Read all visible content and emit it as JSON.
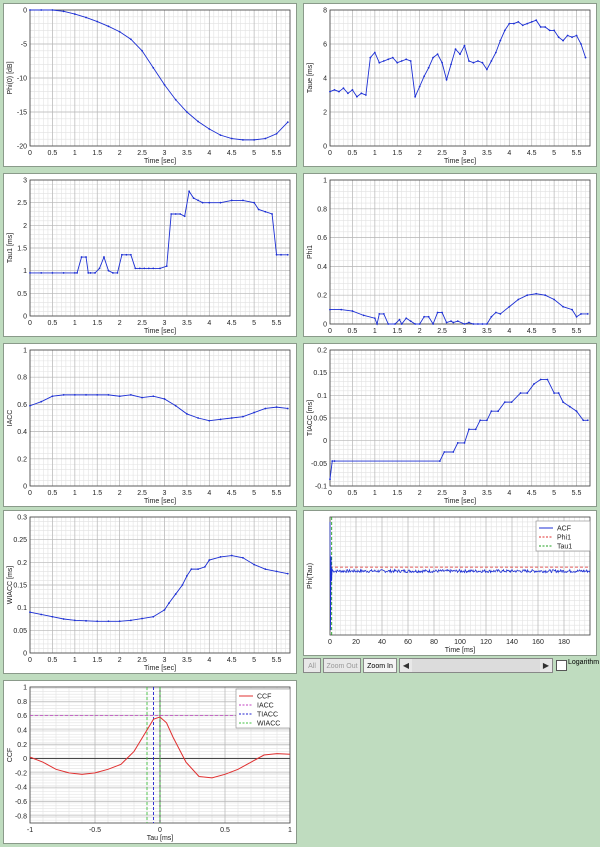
{
  "charts": [
    {
      "id": "phi0",
      "type": "line",
      "xlabel": "Time [sec]",
      "ylabel": "Phi(0) [dB]",
      "xlim": [
        0,
        5.8
      ],
      "ylim": [
        -20,
        0
      ],
      "xticks": [
        0,
        0.5,
        1,
        1.5,
        2,
        2.5,
        3,
        3.5,
        4,
        4.5,
        5,
        5.5
      ],
      "yticks": [
        0,
        -5,
        -10,
        -15,
        -20
      ],
      "grid": true,
      "color": "#1c2fd4",
      "x": [
        0,
        0.25,
        0.5,
        0.75,
        1,
        1.25,
        1.5,
        1.75,
        2,
        2.25,
        2.5,
        2.75,
        3,
        3.25,
        3.5,
        3.75,
        4,
        4.25,
        4.5,
        4.75,
        5,
        5.25,
        5.5,
        5.75
      ],
      "y": [
        0,
        0,
        0,
        -0.2,
        -0.6,
        -1.1,
        -1.7,
        -2.4,
        -3.2,
        -4.3,
        -6,
        -8.5,
        -11,
        -13.2,
        -15,
        -16.4,
        -17.5,
        -18.4,
        -18.9,
        -19.1,
        -19.1,
        -18.9,
        -18.2,
        -16.5
      ]
    },
    {
      "id": "taue",
      "type": "line",
      "xlabel": "Time [sec]",
      "ylabel": "Taue [ms]",
      "xlim": [
        0,
        5.8
      ],
      "ylim": [
        0,
        8
      ],
      "xticks": [
        0,
        0.5,
        1,
        1.5,
        2,
        2.5,
        3,
        3.5,
        4,
        4.5,
        5,
        5.5
      ],
      "yticks": [
        0,
        2,
        4,
        6,
        8
      ],
      "grid": true,
      "color": "#1c2fd4",
      "x": [
        0,
        0.1,
        0.2,
        0.3,
        0.4,
        0.5,
        0.6,
        0.7,
        0.8,
        0.9,
        1,
        1.1,
        1.2,
        1.3,
        1.4,
        1.5,
        1.6,
        1.7,
        1.8,
        1.9,
        2,
        2.1,
        2.2,
        2.3,
        2.4,
        2.5,
        2.6,
        2.7,
        2.8,
        2.9,
        3,
        3.1,
        3.2,
        3.3,
        3.4,
        3.5,
        3.6,
        3.7,
        3.8,
        3.9,
        4,
        4.1,
        4.2,
        4.3,
        4.4,
        4.5,
        4.6,
        4.7,
        4.8,
        4.9,
        5,
        5.1,
        5.2,
        5.3,
        5.4,
        5.5,
        5.6,
        5.7
      ],
      "y": [
        3.2,
        3.3,
        3.2,
        3.4,
        3.1,
        3.3,
        2.9,
        3.1,
        3.0,
        5.2,
        5.5,
        4.9,
        5.0,
        5.1,
        5.2,
        4.9,
        5.0,
        5.1,
        5.0,
        2.9,
        3.5,
        4.1,
        4.6,
        5.2,
        5.4,
        4.9,
        3.9,
        4.8,
        5.7,
        5.4,
        5.9,
        5.0,
        4.9,
        5.0,
        4.9,
        4.5,
        5.0,
        5.5,
        6.2,
        6.8,
        7.2,
        7.2,
        7.3,
        7.1,
        7.2,
        7.3,
        7.4,
        7.0,
        7.0,
        6.8,
        6.8,
        6.4,
        6.2,
        6.5,
        6.4,
        6.5,
        6.0,
        5.2
      ]
    },
    {
      "id": "tau1",
      "type": "line",
      "xlabel": "Time [sec]",
      "ylabel": "Tau1 [ms]",
      "xlim": [
        0,
        5.8
      ],
      "ylim": [
        0,
        3
      ],
      "xticks": [
        0,
        0.5,
        1,
        1.5,
        2,
        2.5,
        3,
        3.5,
        4,
        4.5,
        5,
        5.5
      ],
      "yticks": [
        0,
        0.5,
        1,
        1.5,
        2,
        2.5,
        3
      ],
      "grid": true,
      "color": "#1c2fd4",
      "x": [
        0,
        0.25,
        0.5,
        0.75,
        1,
        1.05,
        1.15,
        1.25,
        1.3,
        1.35,
        1.45,
        1.55,
        1.65,
        1.75,
        1.85,
        1.95,
        2.05,
        2.15,
        2.25,
        2.35,
        2.45,
        2.55,
        2.65,
        2.75,
        2.9,
        3.05,
        3.15,
        3.25,
        3.35,
        3.45,
        3.55,
        3.65,
        3.75,
        3.85,
        4,
        4.25,
        4.5,
        4.75,
        5,
        5.1,
        5.25,
        5.4,
        5.5,
        5.6,
        5.75
      ],
      "y": [
        0.95,
        0.95,
        0.95,
        0.95,
        0.95,
        0.95,
        1.3,
        1.3,
        0.95,
        0.95,
        0.95,
        1.05,
        1.3,
        1.0,
        0.95,
        0.95,
        1.35,
        1.35,
        1.35,
        1.05,
        1.05,
        1.05,
        1.05,
        1.05,
        1.05,
        1.1,
        2.25,
        2.25,
        2.25,
        2.2,
        2.75,
        2.6,
        2.55,
        2.5,
        2.5,
        2.5,
        2.55,
        2.55,
        2.5,
        2.35,
        2.3,
        2.25,
        1.35,
        1.35,
        1.35
      ]
    },
    {
      "id": "phi1",
      "type": "line",
      "xlabel": "",
      "ylabel": "Phi1",
      "xlim": [
        0,
        5.8
      ],
      "ylim": [
        0,
        1
      ],
      "xticks": [
        0,
        0.5,
        1,
        1.5,
        2,
        2.5,
        3,
        3.5,
        4,
        4.5,
        5,
        5.5
      ],
      "yticks": [
        0,
        0.2,
        0.4,
        0.6,
        0.8,
        1
      ],
      "grid": true,
      "color": "#1c2fd4",
      "x": [
        0,
        0.25,
        0.5,
        0.75,
        1,
        1.05,
        1.1,
        1.2,
        1.3,
        1.45,
        1.55,
        1.6,
        1.7,
        1.8,
        1.9,
        2,
        2.1,
        2.2,
        2.3,
        2.4,
        2.5,
        2.6,
        2.7,
        2.75,
        2.85,
        3,
        3.1,
        3.2,
        3.3,
        3.4,
        3.5,
        3.6,
        3.7,
        3.8,
        4,
        4.2,
        4.4,
        4.6,
        4.8,
        5,
        5.2,
        5.4,
        5.5,
        5.6,
        5.75
      ],
      "y": [
        0.1,
        0.1,
        0.09,
        0.06,
        0.04,
        0.0,
        0.07,
        0.07,
        0.0,
        0.0,
        0.03,
        0.0,
        0.04,
        0.02,
        0.0,
        0.0,
        0.05,
        0.05,
        0.0,
        0.08,
        0.08,
        0.01,
        0.02,
        0.01,
        0.02,
        0.0,
        0.01,
        0.0,
        0.0,
        0.0,
        0.0,
        0.05,
        0.08,
        0.07,
        0.12,
        0.17,
        0.2,
        0.21,
        0.2,
        0.17,
        0.12,
        0.1,
        0.05,
        0.07,
        0.07
      ]
    },
    {
      "id": "iacc",
      "type": "line",
      "xlabel": "Time [sec]",
      "ylabel": "IACC",
      "xlim": [
        0,
        5.8
      ],
      "ylim": [
        0,
        1
      ],
      "xticks": [
        0,
        0.5,
        1,
        1.5,
        2,
        2.5,
        3,
        3.5,
        4,
        4.5,
        5,
        5.5
      ],
      "yticks": [
        0,
        0.2,
        0.4,
        0.6,
        0.8,
        1
      ],
      "grid": true,
      "color": "#1c2fd4",
      "x": [
        0,
        0.25,
        0.5,
        0.75,
        1,
        1.25,
        1.5,
        1.75,
        2,
        2.25,
        2.5,
        2.75,
        3,
        3.25,
        3.5,
        3.75,
        4,
        4.25,
        4.5,
        4.75,
        5,
        5.25,
        5.5,
        5.75
      ],
      "y": [
        0.59,
        0.62,
        0.66,
        0.67,
        0.67,
        0.67,
        0.67,
        0.67,
        0.66,
        0.67,
        0.65,
        0.66,
        0.64,
        0.59,
        0.53,
        0.5,
        0.48,
        0.49,
        0.5,
        0.51,
        0.54,
        0.57,
        0.58,
        0.57
      ]
    },
    {
      "id": "tiacc",
      "type": "line",
      "xlabel": "Time [sec]",
      "ylabel": "TIACC [ms]",
      "xlim": [
        0,
        5.8
      ],
      "ylim": [
        -0.1,
        0.2
      ],
      "xticks": [
        0,
        0.5,
        1,
        1.5,
        2,
        2.5,
        3,
        3.5,
        4,
        4.5,
        5,
        5.5
      ],
      "yticks": [
        -0.1,
        -0.05,
        0,
        0.05,
        0.1,
        0.15,
        0.2
      ],
      "grid": true,
      "color": "#1c2fd4",
      "x": [
        0,
        0.05,
        0.1,
        2.45,
        2.55,
        2.75,
        2.85,
        3.0,
        3.1,
        3.25,
        3.35,
        3.5,
        3.6,
        3.75,
        3.9,
        4.05,
        4.25,
        4.4,
        4.55,
        4.7,
        4.85,
        5.0,
        5.1,
        5.2,
        5.35,
        5.5,
        5.65,
        5.75
      ],
      "y": [
        -0.085,
        -0.045,
        -0.045,
        -0.045,
        -0.025,
        -0.025,
        -0.005,
        -0.005,
        0.025,
        0.025,
        0.045,
        0.045,
        0.065,
        0.065,
        0.085,
        0.085,
        0.105,
        0.105,
        0.125,
        0.135,
        0.135,
        0.105,
        0.105,
        0.085,
        0.075,
        0.065,
        0.045,
        0.045
      ]
    },
    {
      "id": "wiacc",
      "type": "line",
      "xlabel": "Time [sec]",
      "ylabel": "WIACC [ms]",
      "xlim": [
        0,
        5.8
      ],
      "ylim": [
        0,
        0.3
      ],
      "xticks": [
        0,
        0.5,
        1,
        1.5,
        2,
        2.5,
        3,
        3.5,
        4,
        4.5,
        5,
        5.5
      ],
      "yticks": [
        0,
        0.05,
        0.1,
        0.15,
        0.2,
        0.25,
        0.3
      ],
      "grid": true,
      "color": "#1c2fd4",
      "x": [
        0,
        0.25,
        0.5,
        0.75,
        1,
        1.25,
        1.5,
        1.75,
        2,
        2.25,
        2.5,
        2.75,
        3,
        3.1,
        3.25,
        3.4,
        3.5,
        3.6,
        3.75,
        3.9,
        4.0,
        4.25,
        4.5,
        4.75,
        5,
        5.25,
        5.5,
        5.75
      ],
      "y": [
        0.09,
        0.085,
        0.08,
        0.075,
        0.072,
        0.071,
        0.07,
        0.07,
        0.07,
        0.072,
        0.076,
        0.08,
        0.095,
        0.11,
        0.13,
        0.15,
        0.17,
        0.185,
        0.185,
        0.19,
        0.205,
        0.212,
        0.215,
        0.21,
        0.195,
        0.185,
        0.18,
        0.175
      ]
    },
    {
      "id": "acf",
      "type": "line",
      "xlabel": "Time [ms]",
      "ylabel": "Phi(Tau)",
      "xlim": [
        0,
        200
      ],
      "ylim": [
        -1.3,
        1.1
      ],
      "xticks": [
        0,
        20,
        40,
        60,
        80,
        100,
        120,
        140,
        160,
        180
      ],
      "yticks": [],
      "grid": true,
      "legend": {
        "position": "top-right",
        "entries": [
          {
            "name": "ACF",
            "color": "#1c2fd4",
            "style": "solid"
          },
          {
            "name": "Phi1",
            "color": "#e03030",
            "style": "dashed"
          },
          {
            "name": "Tau1",
            "color": "#20a020",
            "style": "dashed"
          }
        ]
      },
      "phi1_level": 0.08,
      "tau1_x": 1.3
    },
    {
      "id": "ccf",
      "type": "line",
      "xlabel": "Tau [ms]",
      "ylabel": "CCF",
      "xlim": [
        -1,
        1
      ],
      "ylim": [
        -0.9,
        1
      ],
      "xticks": [
        -1,
        -0.5,
        0,
        0.5,
        1
      ],
      "yticks": [
        1,
        0.8,
        0.6,
        0.4,
        0.2,
        0,
        -0.2,
        -0.4,
        -0.6,
        -0.8
      ],
      "grid": true,
      "legend": {
        "position": "top-right",
        "entries": [
          {
            "name": "CCF",
            "color": "#e03030",
            "style": "solid"
          },
          {
            "name": "IACC",
            "color": "#c040c0",
            "style": "dashed"
          },
          {
            "name": "TIACC",
            "color": "#2020d0",
            "style": "dashed"
          },
          {
            "name": "WIACC",
            "color": "#40c040",
            "style": "dashed"
          }
        ]
      },
      "x": [
        -1,
        -0.9,
        -0.8,
        -0.7,
        -0.6,
        -0.5,
        -0.4,
        -0.3,
        -0.2,
        -0.1,
        -0.05,
        0,
        0.05,
        0.1,
        0.2,
        0.3,
        0.4,
        0.5,
        0.6,
        0.7,
        0.8,
        0.9,
        1
      ],
      "y": [
        0.02,
        -0.05,
        -0.15,
        -0.2,
        -0.22,
        -0.2,
        -0.15,
        -0.08,
        0.1,
        0.4,
        0.55,
        0.58,
        0.5,
        0.3,
        -0.05,
        -0.25,
        -0.27,
        -0.22,
        -0.15,
        -0.05,
        0.05,
        0.07,
        0.06
      ],
      "iacc_level": 0.6,
      "tiacc_x": -0.05,
      "wiacc_x": [
        -0.1,
        0.0
      ]
    }
  ],
  "toolbar": {
    "all": "All",
    "zoom_out": "Zoom Out",
    "zoom_in": "Zoom In",
    "logarithmic": "Logarithm",
    "left": "◀",
    "right": "▶"
  }
}
